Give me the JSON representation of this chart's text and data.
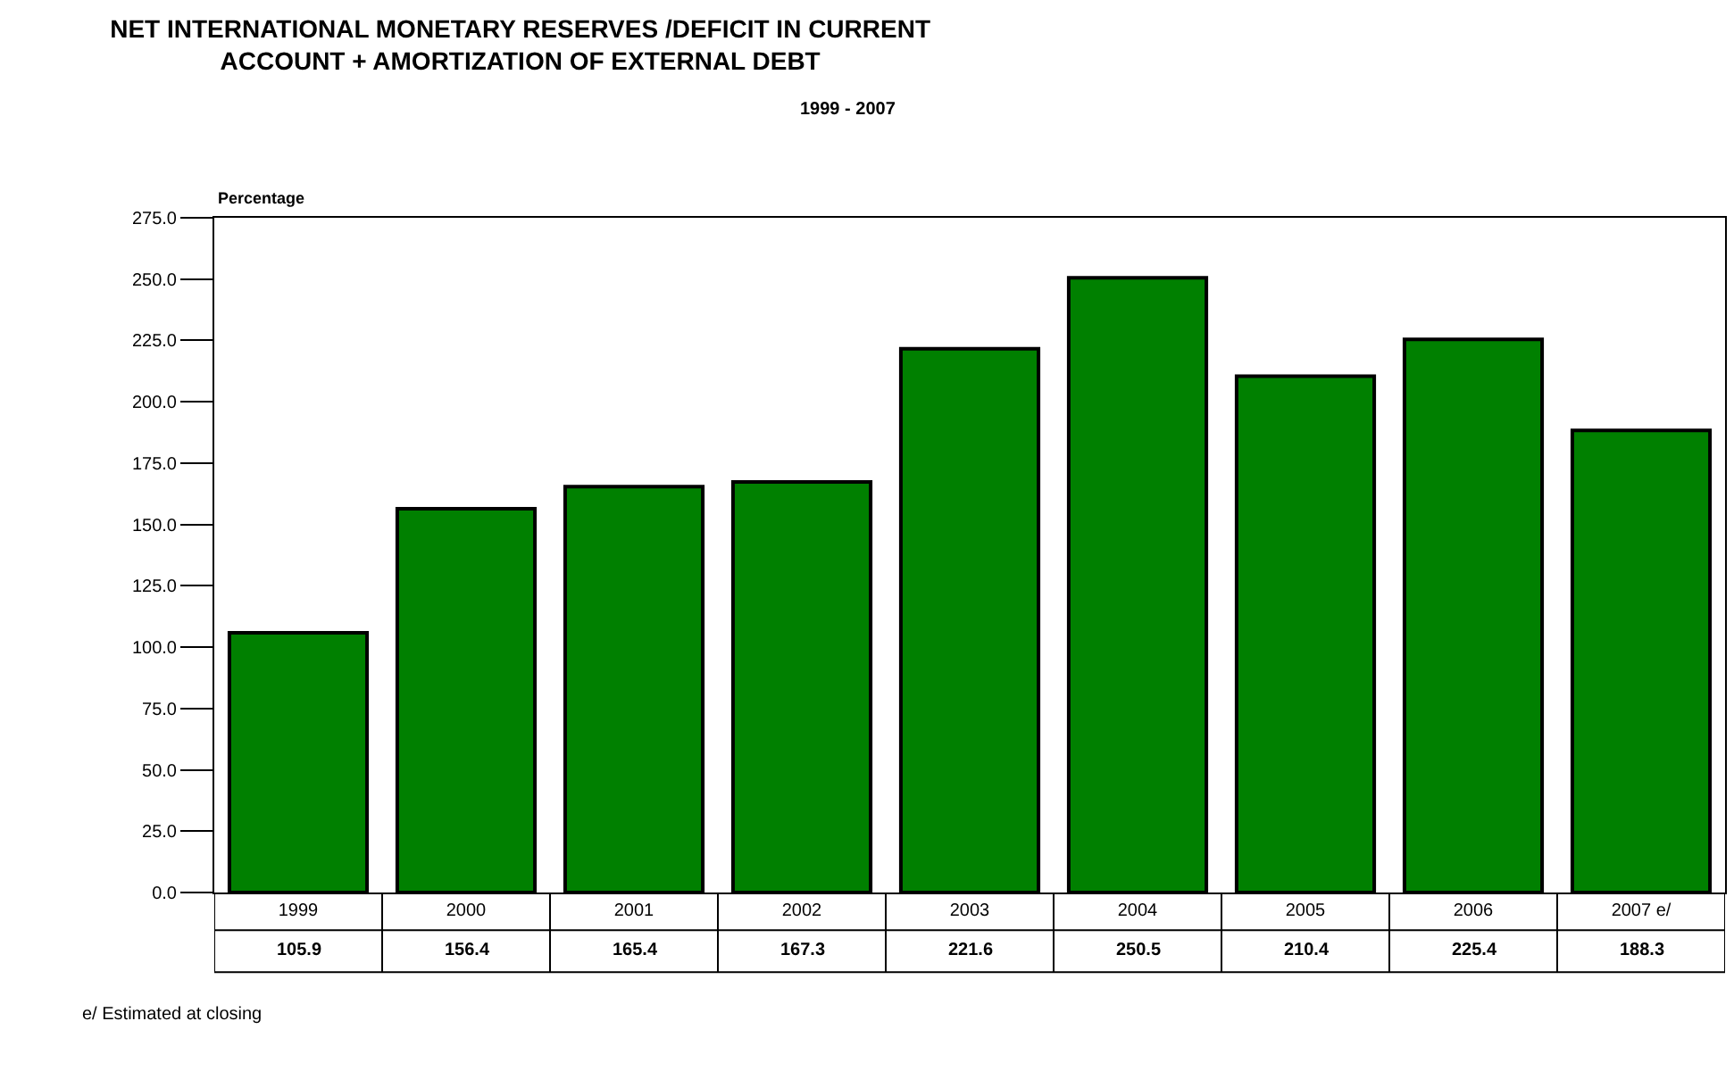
{
  "chart_data": {
    "type": "bar",
    "title": "NET INTERNATIONAL MONETARY RESERVES /DEFICIT IN CURRENT\nACCOUNT + AMORTIZATION OF EXTERNAL DEBT",
    "subtitle": "1999 - 2007",
    "ylabel": "Percentage",
    "categories": [
      "1999",
      "2000",
      "2001",
      "2002",
      "2003",
      "2004",
      "2005",
      "2006",
      "2007 e/"
    ],
    "values": [
      105.9,
      156.4,
      165.4,
      167.3,
      221.6,
      250.5,
      210.4,
      225.4,
      188.3
    ],
    "color": "#008000",
    "ylim": [
      0,
      275
    ],
    "yticks": [
      {
        "value": 0,
        "label": "0.0"
      },
      {
        "value": 25,
        "label": "25.0"
      },
      {
        "value": 50,
        "label": "50.0"
      },
      {
        "value": 75,
        "label": "75.0"
      },
      {
        "value": 100,
        "label": "100.0"
      },
      {
        "value": 125,
        "label": "125.0"
      },
      {
        "value": 150,
        "label": "150.0"
      },
      {
        "value": 175,
        "label": "175.0"
      },
      {
        "value": 200,
        "label": "200.0"
      },
      {
        "value": 225,
        "label": "225.0"
      },
      {
        "value": 250,
        "label": "250.0"
      },
      {
        "value": 275,
        "label": "275.0"
      }
    ],
    "data_labels": true,
    "legend": false,
    "annotations": [
      "e/ Estimated at closing"
    ]
  }
}
